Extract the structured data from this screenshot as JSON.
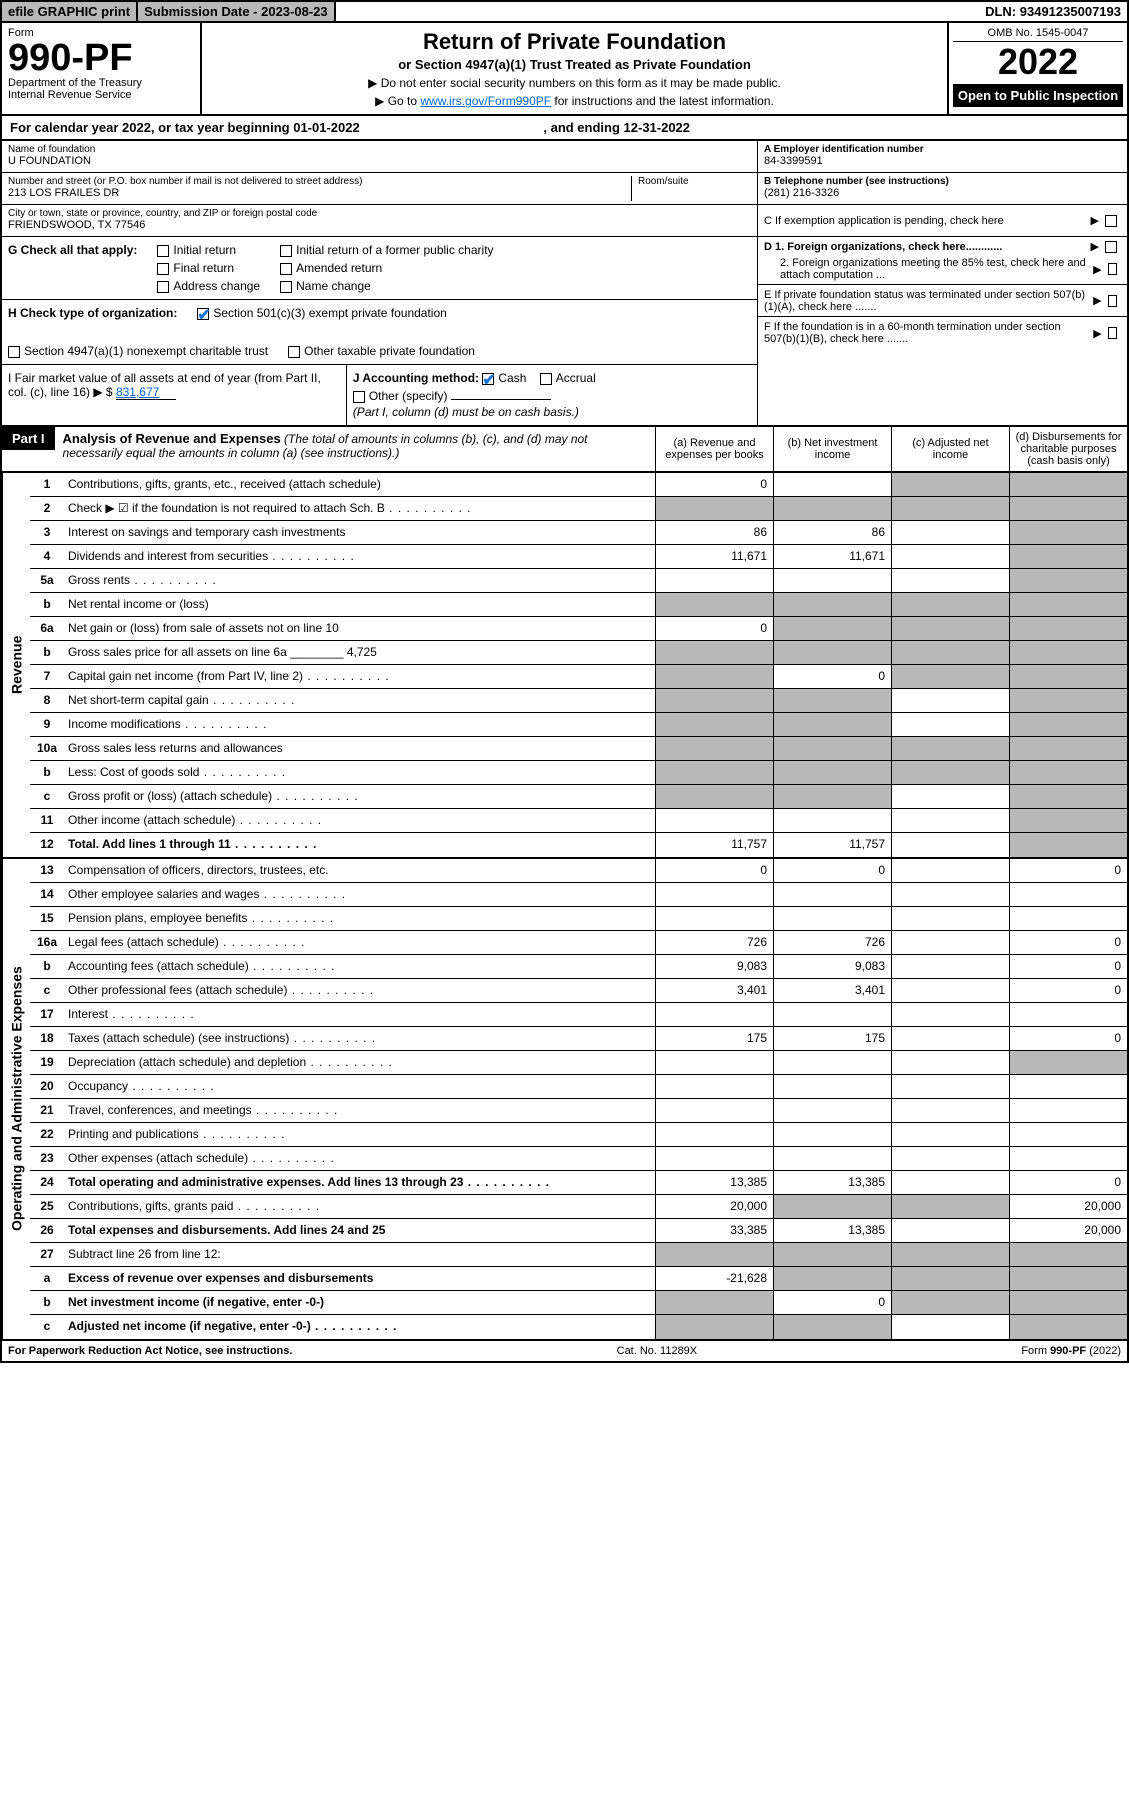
{
  "topbar": {
    "efile": "efile GRAPHIC print",
    "subdate_label": "Submission Date - ",
    "subdate": "2023-08-23",
    "dln_label": "DLN: ",
    "dln": "93491235007193"
  },
  "header": {
    "form_word": "Form",
    "form_num": "990-PF",
    "dept": "Department of the Treasury",
    "irs": "Internal Revenue Service",
    "title": "Return of Private Foundation",
    "subtitle": "or Section 4947(a)(1) Trust Treated as Private Foundation",
    "instr1": "▶ Do not enter social security numbers on this form as it may be made public.",
    "instr2_pre": "▶ Go to ",
    "instr2_link": "www.irs.gov/Form990PF",
    "instr2_post": " for instructions and the latest information.",
    "omb": "OMB No. 1545-0047",
    "year": "2022",
    "open": "Open to Public Inspection"
  },
  "cal": {
    "line": "For calendar year 2022, or tax year beginning 01-01-2022",
    "ending": ", and ending 12-31-2022"
  },
  "name": {
    "label": "Name of foundation",
    "value": "U FOUNDATION"
  },
  "ein": {
    "label": "A Employer identification number",
    "value": "84-3399591"
  },
  "address": {
    "label": "Number and street (or P.O. box number if mail is not delivered to street address)",
    "value": "213 LOS FRAILES DR",
    "room_label": "Room/suite"
  },
  "phone": {
    "label": "B Telephone number (see instructions)",
    "value": "(281) 216-3326"
  },
  "city": {
    "label": "City or town, state or province, country, and ZIP or foreign postal code",
    "value": "FRIENDSWOOD, TX  77546"
  },
  "boxC": "C If exemption application is pending, check here",
  "boxG": {
    "label": "G Check all that apply:",
    "opts": [
      "Initial return",
      "Final return",
      "Address change",
      "Initial return of a former public charity",
      "Amended return",
      "Name change"
    ]
  },
  "boxD": {
    "d1": "D 1. Foreign organizations, check here............",
    "d2": "2. Foreign organizations meeting the 85% test, check here and attach computation ..."
  },
  "boxH": {
    "label": "H Check type of organization:",
    "opt1": "Section 501(c)(3) exempt private foundation",
    "opt2": "Section 4947(a)(1) nonexempt charitable trust",
    "opt3": "Other taxable private foundation"
  },
  "boxE": "E If private foundation status was terminated under section 507(b)(1)(A), check here .......",
  "boxI": {
    "label": "I Fair market value of all assets at end of year (from Part II, col. (c), line 16) ▶ $",
    "value": "831,677"
  },
  "boxJ": {
    "label": "J Accounting method:",
    "cash": "Cash",
    "accrual": "Accrual",
    "other": "Other (specify)",
    "note": "(Part I, column (d) must be on cash basis.)"
  },
  "boxF": "F If the foundation is in a 60-month termination under section 507(b)(1)(B), check here .......",
  "part1": {
    "badge": "Part I",
    "title": "Analysis of Revenue and Expenses",
    "note": " (The total of amounts in columns (b), (c), and (d) may not necessarily equal the amounts in column (a) (see instructions).)",
    "cols": [
      "(a) Revenue and expenses per books",
      "(b) Net investment income",
      "(c) Adjusted net income",
      "(d) Disbursements for charitable purposes (cash basis only)"
    ]
  },
  "sections": {
    "revenue": "Revenue",
    "expenses": "Operating and Administrative Expenses"
  },
  "rows": [
    {
      "n": "1",
      "d": "Contributions, gifts, grants, etc., received (attach schedule)",
      "a": "0",
      "b": "",
      "c": "grey",
      "e": "grey"
    },
    {
      "n": "2",
      "d": "Check ▶ ☑ if the foundation is not required to attach Sch. B",
      "dots": true,
      "a": "",
      "b": "",
      "c": "grey",
      "e": "grey",
      "acg": true,
      "bcg": true
    },
    {
      "n": "3",
      "d": "Interest on savings and temporary cash investments",
      "a": "86",
      "b": "86",
      "c": "",
      "e": "grey"
    },
    {
      "n": "4",
      "d": "Dividends and interest from securities",
      "dots": true,
      "a": "11,671",
      "b": "11,671",
      "c": "",
      "e": "grey"
    },
    {
      "n": "5a",
      "d": "Gross rents",
      "dots": true,
      "a": "",
      "b": "",
      "c": "",
      "e": "grey"
    },
    {
      "n": "b",
      "d": "Net rental income or (loss)",
      "a": "grey",
      "b": "grey",
      "c": "grey",
      "e": "grey"
    },
    {
      "n": "6a",
      "d": "Net gain or (loss) from sale of assets not on line 10",
      "a": "0",
      "b": "grey",
      "c": "grey",
      "e": "grey"
    },
    {
      "n": "b",
      "d": "Gross sales price for all assets on line 6a ________ 4,725",
      "a": "grey",
      "b": "grey",
      "c": "grey",
      "e": "grey"
    },
    {
      "n": "7",
      "d": "Capital gain net income (from Part IV, line 2)",
      "dots": true,
      "a": "grey",
      "b": "0",
      "c": "grey",
      "e": "grey"
    },
    {
      "n": "8",
      "d": "Net short-term capital gain",
      "dots": true,
      "a": "grey",
      "b": "grey",
      "c": "",
      "e": "grey"
    },
    {
      "n": "9",
      "d": "Income modifications",
      "dots": true,
      "a": "grey",
      "b": "grey",
      "c": "",
      "e": "grey"
    },
    {
      "n": "10a",
      "d": "Gross sales less returns and allowances",
      "a": "grey",
      "b": "grey",
      "c": "grey",
      "e": "grey"
    },
    {
      "n": "b",
      "d": "Less: Cost of goods sold",
      "dots": true,
      "a": "grey",
      "b": "grey",
      "c": "grey",
      "e": "grey"
    },
    {
      "n": "c",
      "d": "Gross profit or (loss) (attach schedule)",
      "dots": true,
      "a": "grey",
      "b": "grey",
      "c": "",
      "e": "grey"
    },
    {
      "n": "11",
      "d": "Other income (attach schedule)",
      "dots": true,
      "a": "",
      "b": "",
      "c": "",
      "e": "grey"
    },
    {
      "n": "12",
      "d": "Total. Add lines 1 through 11",
      "dots": true,
      "bold": true,
      "a": "11,757",
      "b": "11,757",
      "c": "",
      "e": "grey"
    }
  ],
  "exp_rows": [
    {
      "n": "13",
      "d": "Compensation of officers, directors, trustees, etc.",
      "a": "0",
      "b": "0",
      "c": "",
      "e": "0"
    },
    {
      "n": "14",
      "d": "Other employee salaries and wages",
      "dots": true,
      "a": "",
      "b": "",
      "c": "",
      "e": ""
    },
    {
      "n": "15",
      "d": "Pension plans, employee benefits",
      "dots": true,
      "a": "",
      "b": "",
      "c": "",
      "e": ""
    },
    {
      "n": "16a",
      "d": "Legal fees (attach schedule)",
      "dots": true,
      "a": "726",
      "b": "726",
      "c": "",
      "e": "0"
    },
    {
      "n": "b",
      "d": "Accounting fees (attach schedule)",
      "dots": true,
      "a": "9,083",
      "b": "9,083",
      "c": "",
      "e": "0"
    },
    {
      "n": "c",
      "d": "Other professional fees (attach schedule)",
      "dots": true,
      "a": "3,401",
      "b": "3,401",
      "c": "",
      "e": "0"
    },
    {
      "n": "17",
      "d": "Interest",
      "dots": true,
      "a": "",
      "b": "",
      "c": "",
      "e": ""
    },
    {
      "n": "18",
      "d": "Taxes (attach schedule) (see instructions)",
      "dots": true,
      "a": "175",
      "b": "175",
      "c": "",
      "e": "0"
    },
    {
      "n": "19",
      "d": "Depreciation (attach schedule) and depletion",
      "dots": true,
      "a": "",
      "b": "",
      "c": "",
      "e": "grey"
    },
    {
      "n": "20",
      "d": "Occupancy",
      "dots": true,
      "a": "",
      "b": "",
      "c": "",
      "e": ""
    },
    {
      "n": "21",
      "d": "Travel, conferences, and meetings",
      "dots": true,
      "a": "",
      "b": "",
      "c": "",
      "e": ""
    },
    {
      "n": "22",
      "d": "Printing and publications",
      "dots": true,
      "a": "",
      "b": "",
      "c": "",
      "e": ""
    },
    {
      "n": "23",
      "d": "Other expenses (attach schedule)",
      "dots": true,
      "a": "",
      "b": "",
      "c": "",
      "e": ""
    },
    {
      "n": "24",
      "d": "Total operating and administrative expenses. Add lines 13 through 23",
      "dots": true,
      "bold": true,
      "a": "13,385",
      "b": "13,385",
      "c": "",
      "e": "0"
    },
    {
      "n": "25",
      "d": "Contributions, gifts, grants paid",
      "dots": true,
      "a": "20,000",
      "b": "grey",
      "c": "grey",
      "e": "20,000"
    },
    {
      "n": "26",
      "d": "Total expenses and disbursements. Add lines 24 and 25",
      "bold": true,
      "a": "33,385",
      "b": "13,385",
      "c": "",
      "e": "20,000"
    },
    {
      "n": "27",
      "d": "Subtract line 26 from line 12:",
      "a": "grey",
      "b": "grey",
      "c": "grey",
      "e": "grey"
    },
    {
      "n": "a",
      "d": "Excess of revenue over expenses and disbursements",
      "bold": true,
      "a": "-21,628",
      "b": "grey",
      "c": "grey",
      "e": "grey"
    },
    {
      "n": "b",
      "d": "Net investment income (if negative, enter -0-)",
      "bold": true,
      "a": "grey",
      "b": "0",
      "c": "grey",
      "e": "grey"
    },
    {
      "n": "c",
      "d": "Adjusted net income (if negative, enter -0-)",
      "dots": true,
      "bold": true,
      "a": "grey",
      "b": "grey",
      "c": "",
      "e": "grey"
    }
  ],
  "footer": {
    "left": "For Paperwork Reduction Act Notice, see instructions.",
    "center": "Cat. No. 11289X",
    "right": "Form 990-PF (2022)"
  },
  "colors": {
    "grey": "#b8b8b8",
    "link": "#0066cc",
    "check": "#1976d2"
  }
}
